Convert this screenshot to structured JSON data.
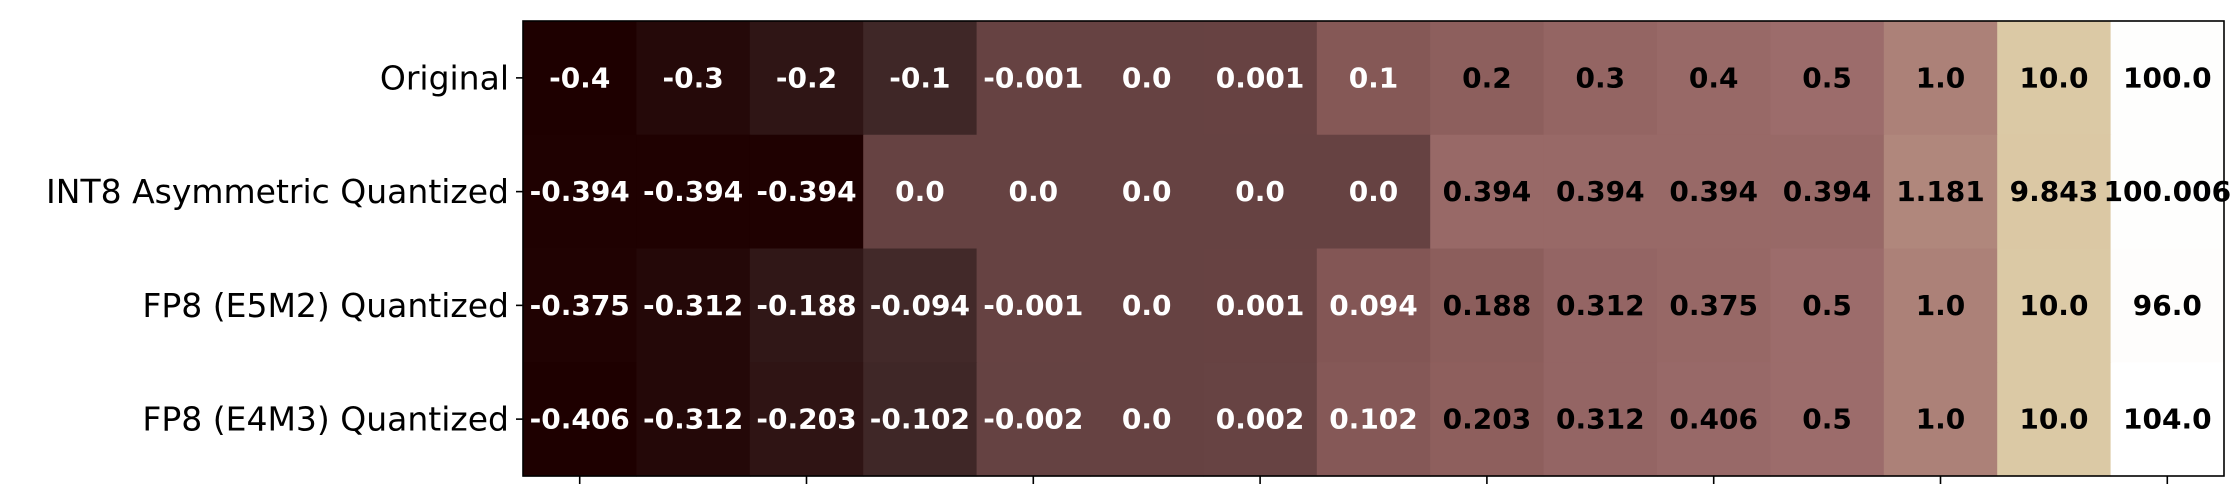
{
  "chart_data": {
    "type": "heatmap",
    "title": "",
    "xlabel": "",
    "ylabel": "",
    "rows": [
      "Original",
      "INT8 Asymmetric Quantized",
      "FP8 (E5M2) Quantized",
      "FP8 (E4M3) Quantized"
    ],
    "values": [
      [
        -0.4,
        -0.3,
        -0.2,
        -0.1,
        -0.001,
        0.0,
        0.001,
        0.1,
        0.2,
        0.3,
        0.4,
        0.5,
        1.0,
        10.0,
        100.0
      ],
      [
        -0.394,
        -0.394,
        -0.394,
        0.0,
        0.0,
        0.0,
        0.0,
        0.0,
        0.394,
        0.394,
        0.394,
        0.394,
        1.181,
        9.843,
        100.006
      ],
      [
        -0.375,
        -0.312,
        -0.188,
        -0.094,
        -0.001,
        0.0,
        0.001,
        0.094,
        0.188,
        0.312,
        0.375,
        0.5,
        1.0,
        10.0,
        96.0
      ],
      [
        -0.406,
        -0.312,
        -0.203,
        -0.102,
        -0.002,
        0.0,
        0.002,
        0.102,
        0.203,
        0.312,
        0.406,
        0.5,
        1.0,
        10.0,
        104.0
      ]
    ],
    "cell_labels": [
      [
        "-0.4",
        "-0.3",
        "-0.2",
        "-0.1",
        "-0.001",
        "0.0",
        "0.001",
        "0.1",
        "0.2",
        "0.3",
        "0.4",
        "0.5",
        "1.0",
        "10.0",
        "100.0"
      ],
      [
        "-0.394",
        "-0.394",
        "-0.394",
        "0.0",
        "0.0",
        "0.0",
        "0.0",
        "0.0",
        "0.394",
        "0.394",
        "0.394",
        "0.394",
        "1.181",
        "9.843",
        "100.006"
      ],
      [
        "-0.375",
        "-0.312",
        "-0.188",
        "-0.094",
        "-0.001",
        "0.0",
        "0.001",
        "0.094",
        "0.188",
        "0.312",
        "0.375",
        "0.5",
        "1.0",
        "10.0",
        "96.0"
      ],
      [
        "-0.406",
        "-0.312",
        "-0.203",
        "-0.102",
        "-0.002",
        "0.0",
        "0.002",
        "0.102",
        "0.203",
        "0.312",
        "0.406",
        "0.5",
        "1.0",
        "10.0",
        "104.0"
      ]
    ],
    "colormap": "pink",
    "colormap_stops": [
      "#1e0000",
      "#3d2626",
      "#553737",
      "#694444",
      "#7b5050",
      "#8a5c5a",
      "#9e6e6d",
      "#c09c88",
      "#d7c39c",
      "#ebe1ca",
      "#ffffff"
    ],
    "color_scale": "symlog",
    "color_range": [
      -0.406,
      104.0
    ],
    "text_color_light": "#ffffff",
    "text_color_dark": "#000000",
    "x_tick_labels_visible": false,
    "grid": false,
    "legend": "none"
  }
}
